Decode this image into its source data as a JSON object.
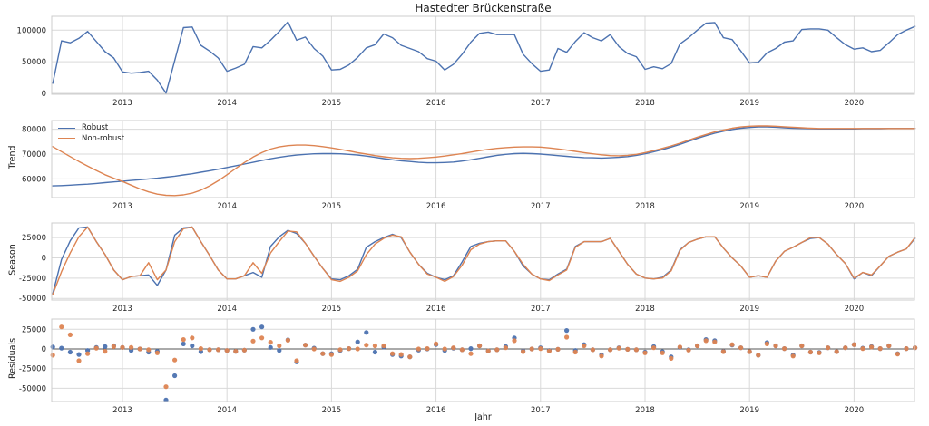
{
  "title": "Hastedter Brückenstraße",
  "xlabel": "Jahr",
  "colors": {
    "robust": "#4c72b0",
    "nonrobust": "#dd8452",
    "grid": "#d9d9d9",
    "spine": "#cccccc",
    "zero_line": "#555555",
    "text": "#262626"
  },
  "legend": {
    "items": [
      {
        "label": "Robust",
        "color": "robust"
      },
      {
        "label": "Non-robust",
        "color": "nonrobust"
      }
    ]
  },
  "x": {
    "start_year": 2012,
    "start_month": 5,
    "months": 100,
    "tick_years": [
      2013,
      2014,
      2015,
      2016,
      2017,
      2018,
      2019,
      2020
    ]
  },
  "chart_data": [
    {
      "type": "line",
      "name": "observed",
      "ylabel": "",
      "yticks": [
        0,
        50000,
        100000
      ],
      "ylim": [
        -1400,
        121900
      ],
      "zero_line": false,
      "series": [
        {
          "name": "observed",
          "color": "robust",
          "values": [
            16000,
            83000,
            80000,
            87000,
            98000,
            82000,
            66000,
            56000,
            34000,
            32000,
            33000,
            35000,
            21000,
            500,
            52000,
            104000,
            105000,
            76000,
            67000,
            56000,
            35000,
            40000,
            46000,
            74000,
            72000,
            84000,
            98000,
            113000,
            84000,
            89000,
            71000,
            59000,
            37000,
            38000,
            45000,
            57000,
            72000,
            77000,
            94000,
            88000,
            76000,
            71000,
            66000,
            55000,
            51000,
            37000,
            46000,
            62000,
            81000,
            95000,
            97000,
            93000,
            93000,
            93000,
            62000,
            47000,
            35000,
            37000,
            71000,
            65000,
            82000,
            96000,
            88000,
            83000,
            93000,
            74000,
            63000,
            58000,
            38000,
            42000,
            39000,
            47000,
            78000,
            88000,
            100000,
            111000,
            112000,
            88000,
            85000,
            67000,
            48000,
            49000,
            64000,
            71000,
            81000,
            83000,
            101000,
            102000,
            102000,
            100000,
            88000,
            77000,
            70000,
            72000,
            66000,
            68000,
            80000,
            93000,
            100000,
            106000
          ]
        }
      ]
    },
    {
      "type": "line",
      "name": "trend",
      "ylabel": "Trend",
      "yticks": [
        60000,
        70000,
        80000
      ],
      "ylim": [
        52500,
        83500
      ],
      "zero_line": false,
      "series": [
        {
          "name": "Robust",
          "color": "robust",
          "values": [
            57200,
            57300,
            57500,
            57700,
            57900,
            58200,
            58500,
            58800,
            59100,
            59400,
            59700,
            60000,
            60300,
            60700,
            61100,
            61600,
            62100,
            62700,
            63300,
            63900,
            64600,
            65300,
            66000,
            66700,
            67400,
            68100,
            68700,
            69200,
            69600,
            69900,
            70100,
            70200,
            70200,
            70100,
            69900,
            69600,
            69200,
            68700,
            68200,
            67700,
            67300,
            67000,
            66700,
            66500,
            66500,
            66600,
            66800,
            67200,
            67700,
            68300,
            68900,
            69500,
            69900,
            70200,
            70300,
            70200,
            70000,
            69700,
            69400,
            69100,
            68800,
            68600,
            68500,
            68400,
            68500,
            68700,
            69000,
            69500,
            70100,
            70900,
            71800,
            72800,
            73900,
            75100,
            76300,
            77400,
            78400,
            79200,
            79900,
            80400,
            80700,
            80900,
            80900,
            80800,
            80600,
            80400,
            80300,
            80200,
            80100,
            80100,
            80100,
            80100,
            80100,
            80200,
            80200,
            80200,
            80300,
            80300,
            80300,
            80300
          ]
        },
        {
          "name": "Non-robust",
          "color": "nonrobust",
          "values": [
            73000,
            71000,
            69000,
            67000,
            65200,
            63400,
            61700,
            60300,
            59000,
            57500,
            56000,
            54800,
            53900,
            53400,
            53300,
            53600,
            54300,
            55500,
            57200,
            59300,
            61700,
            64200,
            66600,
            68800,
            70600,
            72000,
            72900,
            73400,
            73600,
            73600,
            73400,
            73000,
            72500,
            71900,
            71300,
            70600,
            70000,
            69400,
            68900,
            68500,
            68300,
            68200,
            68300,
            68500,
            68800,
            69200,
            69700,
            70200,
            70800,
            71400,
            71900,
            72300,
            72600,
            72800,
            72900,
            72900,
            72800,
            72500,
            72100,
            71600,
            71100,
            70600,
            70100,
            69700,
            69400,
            69300,
            69500,
            69900,
            70600,
            71400,
            72300,
            73300,
            74400,
            75600,
            76800,
            77900,
            78900,
            79700,
            80400,
            80900,
            81200,
            81300,
            81300,
            81200,
            81000,
            80800,
            80600,
            80400,
            80300,
            80300,
            80300,
            80300,
            80300,
            80300,
            80300,
            80300,
            80300,
            80300,
            80300,
            80300
          ]
        }
      ]
    },
    {
      "type": "line",
      "name": "season",
      "ylabel": "Season",
      "yticks": [
        -50000,
        -25000,
        0,
        25000
      ],
      "ylim": [
        -52000,
        43000
      ],
      "zero_line": false,
      "series": [
        {
          "name": "Robust",
          "color": "robust",
          "values": [
            -44000,
            -2000,
            21000,
            37000,
            38000,
            20000,
            4000,
            -15000,
            -27000,
            -23000,
            -22000,
            -21000,
            -34000,
            -15000,
            28000,
            37000,
            38000,
            20000,
            3000,
            -15000,
            -26000,
            -26000,
            -22000,
            -18000,
            -24000,
            14000,
            26000,
            34000,
            30000,
            18000,
            2000,
            -13000,
            -26000,
            -27000,
            -22000,
            -14000,
            13000,
            20000,
            25000,
            29000,
            25000,
            7000,
            -8000,
            -19000,
            -24000,
            -27000,
            -22000,
            -5000,
            14000,
            18000,
            20000,
            21000,
            21000,
            8000,
            -10000,
            -20000,
            -26000,
            -27000,
            -20000,
            -14000,
            14000,
            20000,
            20000,
            20000,
            24000,
            8000,
            -8000,
            -20000,
            -25000,
            -26000,
            -24000,
            -15000,
            10000,
            19000,
            23000,
            26000,
            26000,
            12000,
            0,
            -10000,
            -24000,
            -22000,
            -24000,
            -4000,
            8000,
            13000,
            19000,
            24000,
            25000,
            17000,
            4000,
            -7000,
            -26000,
            -18000,
            -22000,
            -10000,
            2000,
            7000,
            11000,
            24000
          ]
        },
        {
          "name": "Non-robust",
          "color": "nonrobust",
          "values": [
            -45000,
            -17000,
            6000,
            26000,
            38000,
            20000,
            4000,
            -15000,
            -27000,
            -23000,
            -22000,
            -6000,
            -27000,
            -15000,
            20000,
            36000,
            38000,
            20000,
            3000,
            -15000,
            -26000,
            -26000,
            -22000,
            -6000,
            -19000,
            6000,
            20000,
            33000,
            32000,
            18000,
            2000,
            -13000,
            -27000,
            -29000,
            -24000,
            -16000,
            4000,
            17000,
            24000,
            28000,
            26000,
            7000,
            -8000,
            -20000,
            -24000,
            -29000,
            -23000,
            -9000,
            10000,
            17000,
            20000,
            21000,
            21000,
            8000,
            -8000,
            -20000,
            -26000,
            -28000,
            -21000,
            -15000,
            13000,
            20000,
            20000,
            20000,
            24000,
            8000,
            -8000,
            -20000,
            -25000,
            -26000,
            -25000,
            -16000,
            9000,
            19000,
            23000,
            26000,
            26000,
            12000,
            0,
            -10000,
            -24000,
            -22000,
            -24000,
            -4000,
            8000,
            13000,
            19000,
            25000,
            25000,
            17000,
            4000,
            -7000,
            -25000,
            -18000,
            -21000,
            -10000,
            2000,
            7000,
            11000,
            25000
          ]
        }
      ]
    },
    {
      "type": "scatter",
      "name": "residuals",
      "ylabel": "Residuals",
      "yticks": [
        -50000,
        -25000,
        0,
        25000
      ],
      "ylim": [
        -66800,
        38000
      ],
      "zero_line": true,
      "series": [
        {
          "name": "Robust",
          "color": "robust",
          "values": [
            2500,
            1000,
            -4000,
            -7000,
            -2000,
            2000,
            3000,
            4000,
            2000,
            -2000,
            0,
            -4000,
            -3000,
            -65000,
            -34000,
            6500,
            4000,
            -3500,
            -1000,
            -1000,
            -2000,
            -3000,
            -1500,
            25000,
            28000,
            2000,
            -2000,
            11500,
            -16500,
            5000,
            1000,
            -6000,
            -6000,
            -2000,
            500,
            9000,
            21000,
            -4000,
            2500,
            -7000,
            -9000,
            -10000,
            -1500,
            0,
            5500,
            -2000,
            1000,
            -1000,
            500,
            4000,
            -2500,
            -1000,
            3000,
            14000,
            -2500,
            0,
            1500,
            -2000,
            -500,
            23500,
            -2000,
            5500,
            -1000,
            -7500,
            -1000,
            1500,
            -500,
            -1000,
            -4000,
            3000,
            -3500,
            -10000,
            2000,
            -1000,
            4000,
            12000,
            10500,
            -3000,
            5000,
            1500,
            -3500,
            -8000,
            8000,
            4000,
            500,
            -8000,
            4000,
            -4000,
            -4500,
            1500,
            -3500,
            1500,
            5500,
            1000,
            3000,
            500,
            4000,
            -6000,
            500,
            1500
          ]
        },
        {
          "name": "Non-robust",
          "color": "nonrobust",
          "values": [
            -8000,
            28000,
            18000,
            -15000,
            -6000,
            1000,
            -3000,
            3000,
            2000,
            2000,
            0,
            -1000,
            -5000,
            -48000,
            -14000,
            12000,
            14000,
            500,
            -1000,
            -1000,
            -2000,
            -3000,
            -1500,
            10000,
            14000,
            8500,
            4000,
            11000,
            -15000,
            5000,
            0,
            -6000,
            -7000,
            -1000,
            500,
            0,
            5000,
            4000,
            4000,
            -6000,
            -7000,
            -10000,
            0,
            500,
            6500,
            0,
            1500,
            -1000,
            -6000,
            4000,
            -2500,
            -1000,
            1500,
            10500,
            -3500,
            0,
            500,
            -2500,
            -500,
            15000,
            -4000,
            4000,
            -1000,
            -9000,
            -1000,
            1000,
            -500,
            -1000,
            -5000,
            1500,
            -5000,
            -12000,
            2500,
            -1500,
            4000,
            10500,
            9000,
            -3500,
            5500,
            1500,
            -3500,
            -8000,
            6500,
            4000,
            500,
            -9000,
            4000,
            -4000,
            -5000,
            1500,
            -3500,
            1500,
            5500,
            500,
            2500,
            500,
            4000,
            -6500,
            500,
            1500
          ]
        }
      ]
    }
  ]
}
